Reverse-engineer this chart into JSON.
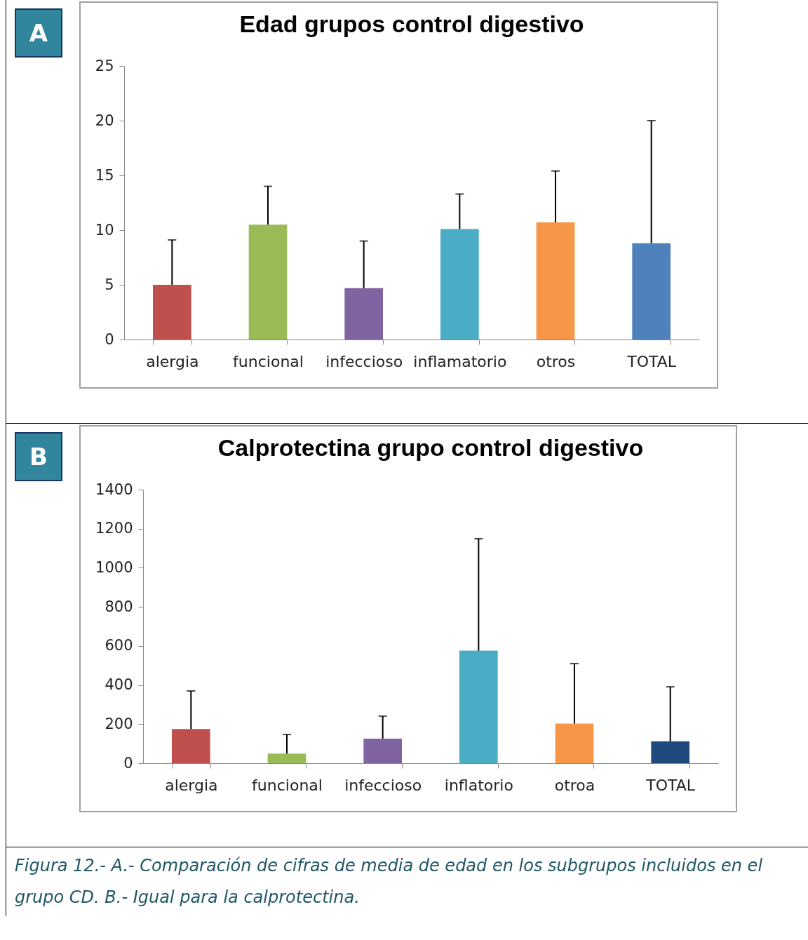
{
  "chart_data": [
    {
      "type": "bar",
      "title": "Edad grupos control digestivo",
      "categories": [
        "alergia",
        "funcional",
        "infeccioso",
        "inflamatorio",
        "otros",
        "TOTAL"
      ],
      "values": [
        5.0,
        10.5,
        4.7,
        10.1,
        10.7,
        8.8
      ],
      "colors": [
        "#c0504d",
        "#9bbb59",
        "#8064a2",
        "#4bacc6",
        "#f79646",
        "#4f81bd"
      ],
      "errors": [
        [
          5.0,
          9.1
        ],
        [
          10.5,
          14.0
        ],
        [
          4.7,
          9.0
        ],
        [
          10.1,
          13.3
        ],
        [
          10.7,
          15.4
        ],
        [
          8.8,
          20.0
        ]
      ],
      "ylim": [
        0,
        25
      ],
      "yticks": [
        0,
        5,
        10,
        15,
        20,
        25
      ],
      "grid": false,
      "annotations": [
        "A"
      ]
    },
    {
      "type": "bar",
      "title": "Calprotectina grupo control digestivo",
      "categories": [
        "alergia",
        "funcional",
        "infeccioso",
        "inflatorio",
        "otroa",
        "TOTAL"
      ],
      "values": [
        175,
        49,
        126,
        576,
        203,
        112
      ],
      "colors": [
        "#c0504d",
        "#9bbb59",
        "#8064a2",
        "#4bacc6",
        "#f79646",
        "#1f497d"
      ],
      "errors": [
        [
          175,
          370
        ],
        [
          49,
          147
        ],
        [
          126,
          241
        ],
        [
          576,
          1149
        ],
        [
          203,
          510
        ],
        [
          112,
          391
        ]
      ],
      "ylim": [
        0,
        1400
      ],
      "yticks": [
        0,
        200,
        400,
        600,
        800,
        1000,
        1200,
        1400
      ],
      "grid": false,
      "annotations": [
        "B",
        "Figura 12.- A.- Comparación de cifras de media de edad en los subgrupos incluidos en el grupo CD. B.- Igual para la calprotectina."
      ]
    }
  ]
}
